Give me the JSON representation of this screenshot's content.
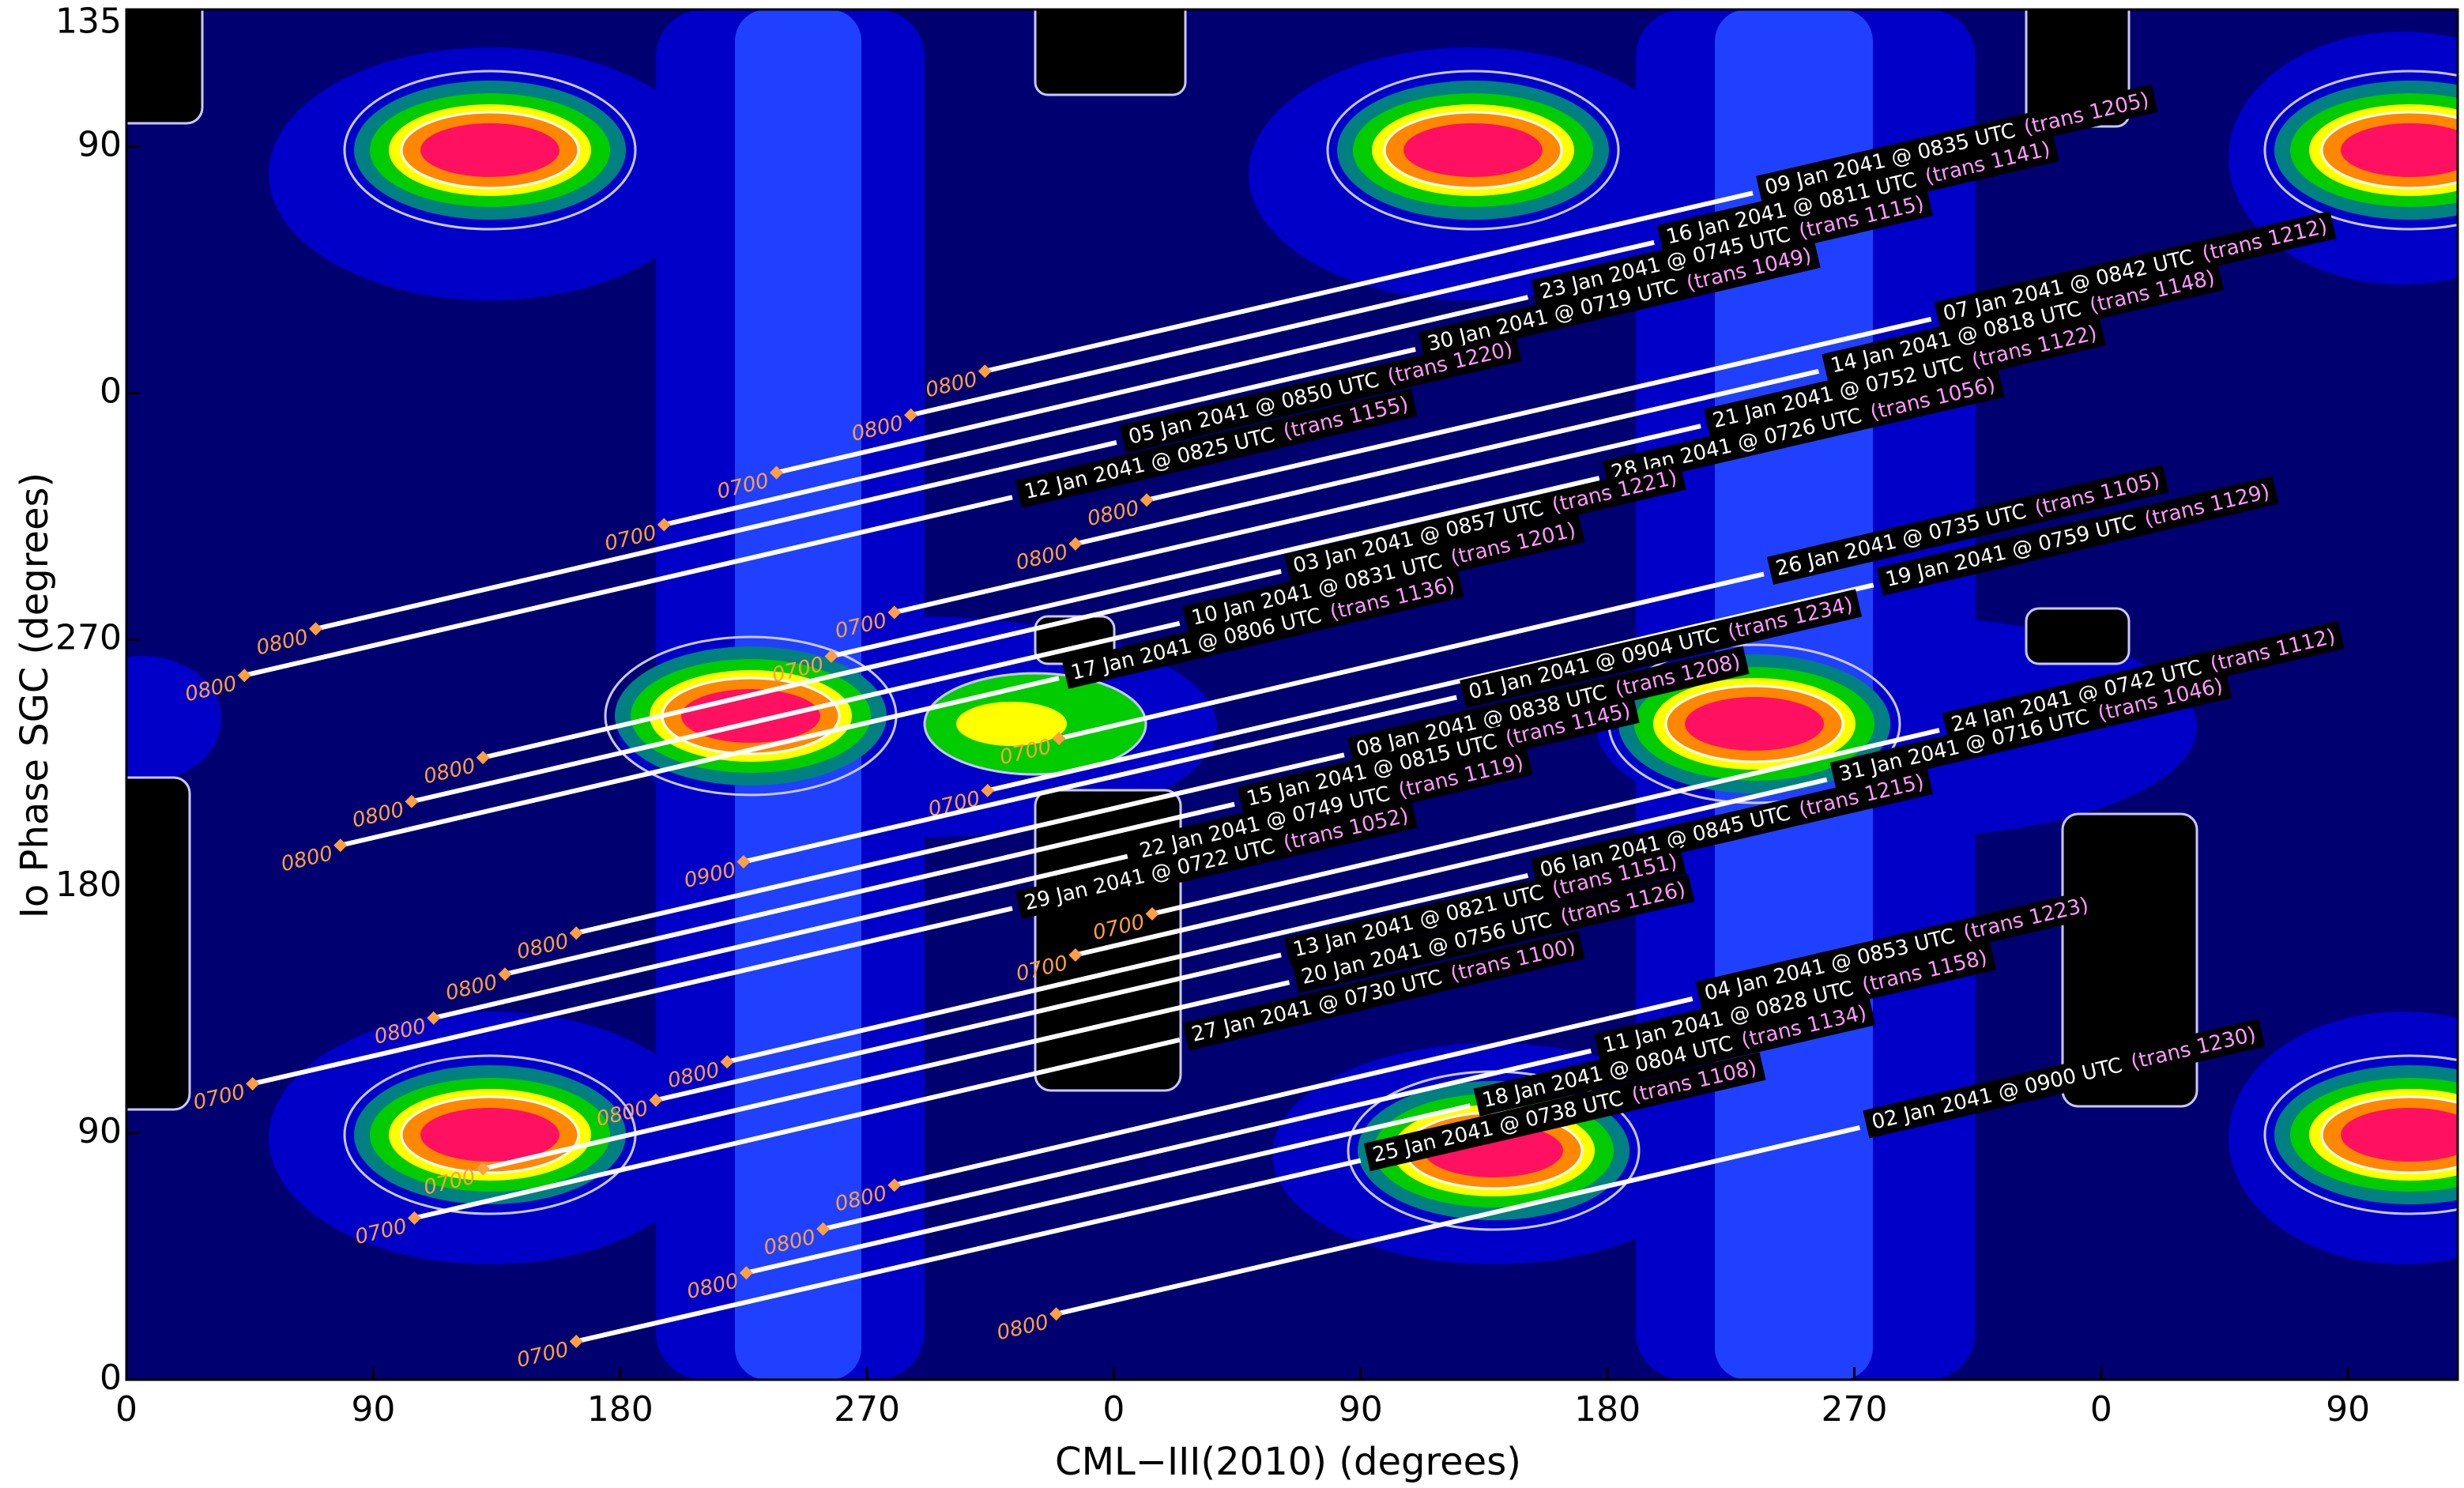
{
  "chart_data": {
    "type": "track",
    "xlabel": "CML−III(2010) (degrees)",
    "ylabel": "Io Phase SGC (degrees)",
    "xlim": [
      0,
      850
    ],
    "xticks": [
      0,
      90,
      180,
      270,
      {
        "value": 360,
        "label": "0"
      },
      {
        "value": 450,
        "label": "90"
      },
      {
        "value": 540,
        "label": "180"
      },
      {
        "value": 630,
        "label": "270"
      },
      {
        "value": 720,
        "label": "0"
      },
      {
        "value": 810,
        "label": "90"
      }
    ],
    "ylim": [
      0,
      500
    ],
    "yticks": [
      0,
      90,
      180,
      270,
      {
        "value": 360,
        "label": "0"
      },
      {
        "value": 450,
        "label": "90"
      },
      {
        "value": 495,
        "label": "135"
      }
    ],
    "line_color": "#ffffff",
    "start_color": "#ffa040",
    "trans_color": "#ff99ff",
    "series": [
      {
        "name": "09 Jan 2041 @ 0835 UTC",
        "trans_label": "(trans 1205)",
        "start_label": "0800",
        "x": [
          313,
          593
        ],
        "values": [
          368,
          433
        ]
      },
      {
        "name": "16 Jan 2041 @ 0811 UTC",
        "trans_label": "(trans 1141)",
        "start_label": "0800",
        "x": [
          286,
          557
        ],
        "values": [
          352,
          415
        ]
      },
      {
        "name": "23 Jan 2041 @ 0745 UTC",
        "trans_label": "(trans 1115)",
        "start_label": "0700",
        "x": [
          237,
          511
        ],
        "values": [
          331,
          395
        ]
      },
      {
        "name": "30 Jan 2041 @ 0719 UTC",
        "trans_label": "(trans 1049)",
        "start_label": "0700",
        "x": [
          196,
          470
        ],
        "values": [
          312,
          376
        ]
      },
      {
        "name": "05 Jan 2041 @ 0850 UTC",
        "trans_label": "(trans 1220)",
        "start_label": "0800",
        "x": [
          69,
          361
        ],
        "values": [
          274,
          342
        ]
      },
      {
        "name": "12 Jan 2041 @ 0825 UTC",
        "trans_label": "(trans 1155)",
        "start_label": "0800",
        "x": [
          43,
          323
        ],
        "values": [
          257,
          322
        ]
      },
      {
        "name": "07 Jan 2041 @ 0842 UTC",
        "trans_label": "(trans 1212)",
        "start_label": "0800",
        "x": [
          372,
          658
        ],
        "values": [
          321,
          387
        ]
      },
      {
        "name": "14 Jan 2041 @ 0818 UTC",
        "trans_label": "(trans 1148)",
        "start_label": "0800",
        "x": [
          346,
          617
        ],
        "values": [
          305,
          368
        ]
      },
      {
        "name": "21 Jan 2041 @ 0752 UTC",
        "trans_label": "(trans 1122)",
        "start_label": "0700",
        "x": [
          280,
          574
        ],
        "values": [
          280,
          348
        ]
      },
      {
        "name": "28 Jan 2041 @ 0726 UTC",
        "trans_label": "(trans 1056)",
        "start_label": "0700",
        "x": [
          257,
          537
        ],
        "values": [
          264,
          329
        ]
      },
      {
        "name": "03 Jan 2041 @ 0857 UTC",
        "trans_label": "(trans 1221)",
        "start_label": "0800",
        "x": [
          130,
          421
        ],
        "values": [
          227,
          295
        ]
      },
      {
        "name": "10 Jan 2041 @ 0831 UTC",
        "trans_label": "(trans 1201)",
        "start_label": "0800",
        "x": [
          104,
          384
        ],
        "values": [
          211,
          276
        ]
      },
      {
        "name": "17 Jan 2041 @ 0806 UTC",
        "trans_label": "(trans 1136)",
        "start_label": "0800",
        "x": [
          78,
          340
        ],
        "values": [
          195,
          256
        ]
      },
      {
        "name": "19 Jan 2041 @ 0759 UTC",
        "trans_label": "(trans 1129)",
        "start_label": "0700",
        "x": [
          314,
          637
        ],
        "values": [
          215,
          290
        ]
      },
      {
        "name": "26 Jan 2041 @ 0735 UTC",
        "trans_label": "(trans 1105)",
        "start_label": "0700",
        "x": [
          340,
          597
        ],
        "values": [
          234,
          294
        ]
      },
      {
        "name": "01 Jan 2041 @ 0904 UTC",
        "trans_label": "(trans 1234)",
        "start_label": "0900",
        "x": [
          225,
          485
        ],
        "values": [
          189,
          249
        ]
      },
      {
        "name": "08 Jan 2041 @ 0838 UTC",
        "trans_label": "(trans 1208)",
        "start_label": "0800",
        "x": [
          164,
          444
        ],
        "values": [
          163,
          228
        ]
      },
      {
        "name": "15 Jan 2041 @ 0815 UTC",
        "trans_label": "(trans 1145)",
        "start_label": "0800",
        "x": [
          138,
          404
        ],
        "values": [
          148,
          210
        ]
      },
      {
        "name": "22 Jan 2041 @ 0749 UTC",
        "trans_label": "(trans 1119)",
        "start_label": "0800",
        "x": [
          112,
          365
        ],
        "values": [
          132,
          191
        ]
      },
      {
        "name": "29 Jan 2041 @ 0722 UTC",
        "trans_label": "(trans 1052)",
        "start_label": "0700",
        "x": [
          46,
          323
        ],
        "values": [
          108,
          172
        ]
      },
      {
        "name": "24 Jan 2041 @ 0742 UTC",
        "trans_label": "(trans 1112)",
        "start_label": "0700",
        "x": [
          374,
          661
        ],
        "values": [
          170,
          237
        ]
      },
      {
        "name": "31 Jan 2041 @ 0716 UTC",
        "trans_label": "(trans 1046)",
        "start_label": "0700",
        "x": [
          346,
          620
        ],
        "values": [
          155,
          219
        ]
      },
      {
        "name": "06 Jan 2041 @ 0845 UTC",
        "trans_label": "(trans 1215)",
        "start_label": "0800",
        "x": [
          219,
          511
        ],
        "values": [
          116,
          184
        ]
      },
      {
        "name": "13 Jan 2041 @ 0821 UTC",
        "trans_label": "(trans 1151)",
        "start_label": "0800",
        "x": [
          193,
          421
        ],
        "values": [
          102,
          155
        ]
      },
      {
        "name": "20 Jan 2041 @ 0756 UTC",
        "trans_label": "(trans 1126)",
        "start_label": "0700",
        "x": [
          130,
          424
        ],
        "values": [
          77,
          145
        ]
      },
      {
        "name": "27 Jan 2041 @ 0730 UTC",
        "trans_label": "(trans 1100)",
        "start_label": "0700",
        "x": [
          105,
          384
        ],
        "values": [
          59,
          124
        ]
      },
      {
        "name": "04 Jan 2041 @ 0853 UTC",
        "trans_label": "(trans 1223)",
        "start_label": "0800",
        "x": [
          280,
          571
        ],
        "values": [
          71,
          139
        ]
      },
      {
        "name": "11 Jan 2041 @ 0828 UTC",
        "trans_label": "(trans 1158)",
        "start_label": "0800",
        "x": [
          254,
          534
        ],
        "values": [
          55,
          120
        ]
      },
      {
        "name": "18 Jan 2041 @ 0804 UTC",
        "trans_label": "(trans 1134)",
        "start_label": "0800",
        "x": [
          226,
          490
        ],
        "values": [
          39,
          100
        ]
      },
      {
        "name": "25 Jan 2041 @ 0738 UTC",
        "trans_label": "(trans 1108)",
        "start_label": "0700",
        "x": [
          164,
          450
        ],
        "values": [
          14,
          80
        ]
      },
      {
        "name": "02 Jan 2041 @ 0900 UTC",
        "trans_label": "(trans 1230)",
        "start_label": "0800",
        "x": [
          339,
          632
        ],
        "values": [
          24,
          92
        ]
      }
    ]
  }
}
